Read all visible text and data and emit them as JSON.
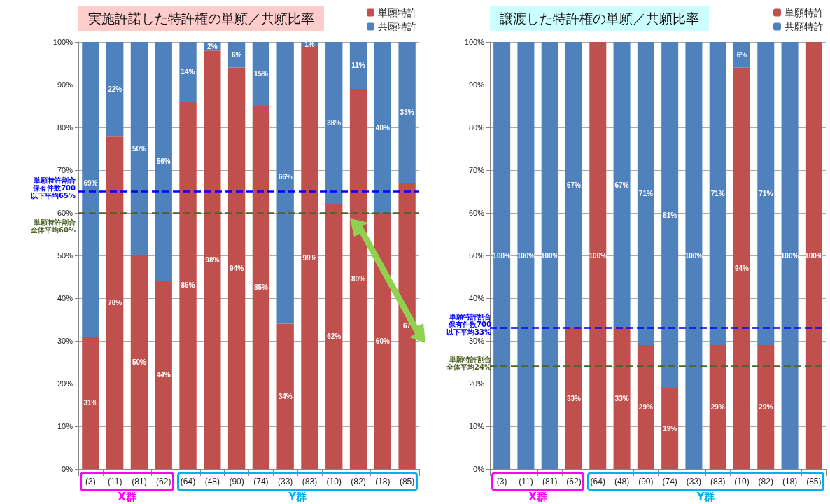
{
  "chart_data": [
    {
      "type": "bar",
      "stacked": true,
      "title": "実施許諾した特許権の単願／共願比率",
      "categories": [
        "(3)",
        "(11)",
        "(81)",
        "(62)",
        "(64)",
        "(48)",
        "(90)",
        "(74)",
        "(33)",
        "(83)",
        "(10)",
        "(82)",
        "(18)",
        "(85)"
      ],
      "series": [
        {
          "name": "単願特許",
          "color": "#c0504d",
          "values": [
            31,
            78,
            50,
            44,
            86,
            98,
            94,
            85,
            34,
            99,
            62,
            89,
            60,
            67
          ],
          "value_labels": [
            "31%",
            "78%",
            "50%",
            "44%",
            "86%",
            "98%",
            "94%",
            "85%",
            "34%",
            "99%",
            "62%",
            "89%",
            "60%",
            "67"
          ]
        },
        {
          "name": "共願特許",
          "color": "#4f81bd",
          "values": [
            69,
            22,
            50,
            56,
            14,
            2,
            6,
            15,
            66,
            1,
            38,
            11,
            40,
            33
          ],
          "value_labels": [
            "69%",
            "22%",
            "50%",
            "56%",
            "14%",
            "2%",
            "6%",
            "15%",
            "66%",
            "1%",
            "38%",
            "11%",
            "40%",
            "33%"
          ]
        }
      ],
      "ylim": [
        0,
        100
      ],
      "yticks": [
        {
          "value": 0,
          "label": "0%"
        },
        {
          "value": 10,
          "label": "10%"
        },
        {
          "value": 20,
          "label": "20%"
        },
        {
          "value": 30,
          "label": "30%"
        },
        {
          "value": 40,
          "label": "40%"
        },
        {
          "value": 50,
          "label": "50%"
        },
        {
          "value": 60,
          "label": "60%"
        },
        {
          "value": 70,
          "label": "70%"
        },
        {
          "value": 80,
          "label": "80%"
        },
        {
          "value": 90,
          "label": "90%"
        },
        {
          "value": 100,
          "label": "100%"
        }
      ],
      "grid": "y",
      "legend": "top right",
      "ref_lines": [
        {
          "axis": "y",
          "value": 65,
          "label": "単願特許割合保有件数700以下平均65%",
          "color": "#0000ff",
          "line_style": "dashed"
        },
        {
          "axis": "y",
          "value": 60,
          "label": "単願特許割合全体平均60%",
          "color": "#4f6228",
          "line_style": "dashed"
        }
      ],
      "annotations": [
        "X群",
        "Y群"
      ]
    },
    {
      "type": "bar",
      "stacked": true,
      "title": "譲渡した特許権の単願／共願比率",
      "categories": [
        "(3)",
        "(11)",
        "(81)",
        "(62)",
        "(64)",
        "(48)",
        "(90)",
        "(74)",
        "(33)",
        "(83)",
        "(10)",
        "(82)",
        "(18)",
        "(85)"
      ],
      "series": [
        {
          "name": "単願特許",
          "color": "#c0504d",
          "values": [
            0,
            0,
            0,
            33,
            100,
            33,
            29,
            19,
            0,
            29,
            94,
            29,
            0,
            100
          ],
          "value_labels": [
            null,
            null,
            null,
            "33%",
            "100%",
            "33%",
            "29%",
            "19%",
            null,
            "29%",
            "94%",
            "29%",
            null,
            "100%"
          ]
        },
        {
          "name": "共願特許",
          "color": "#4f81bd",
          "values": [
            100,
            100,
            100,
            67,
            0,
            67,
            71,
            81,
            100,
            71,
            6,
            71,
            100,
            0
          ],
          "value_labels": [
            "100%",
            "100%",
            "100%",
            "67%",
            null,
            "67%",
            "71%",
            "81%",
            "100%",
            "71%",
            "6%",
            "71%",
            "100%",
            null
          ]
        }
      ],
      "ylim": [
        0,
        100
      ],
      "yticks": [
        {
          "value": 0,
          "label": "0%"
        },
        {
          "value": 10,
          "label": "10%"
        },
        {
          "value": 20,
          "label": "20%"
        },
        {
          "value": 30,
          "label": "30%"
        },
        {
          "value": 40,
          "label": "40%"
        },
        {
          "value": 50,
          "label": "50%"
        },
        {
          "value": 60,
          "label": "60%"
        },
        {
          "value": 70,
          "label": "70%"
        },
        {
          "value": 80,
          "label": "80%"
        },
        {
          "value": 90,
          "label": "90%"
        },
        {
          "value": 100,
          "label": "100%"
        }
      ],
      "grid": "y",
      "legend": "top right",
      "ref_lines": [
        {
          "axis": "y",
          "value": 33,
          "label": "単願特許割合保有件数700以下平均33%",
          "color": "#0000ff",
          "line_style": "dashed"
        },
        {
          "axis": "y",
          "value": 24,
          "label": "単願特許割合全体平均24%",
          "color": "#4f6228",
          "line_style": "dashed"
        }
      ],
      "annotations": [
        "X群",
        "Y群"
      ]
    }
  ]
}
